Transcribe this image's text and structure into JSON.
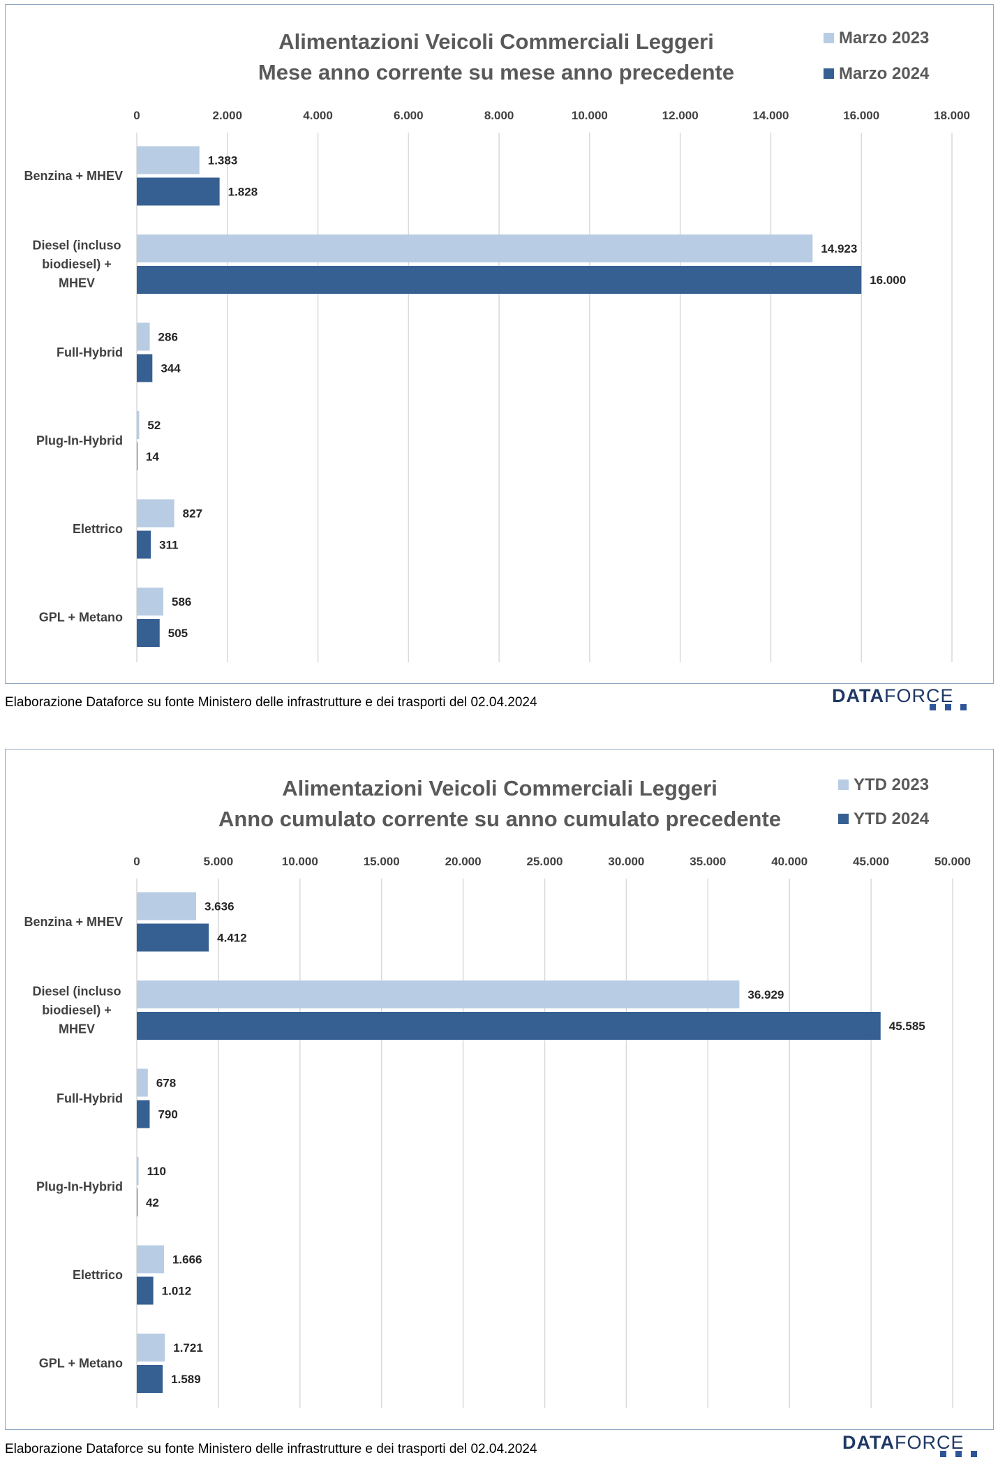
{
  "charts": [
    {
      "title_line1": "Alimentazioni Veicoli Commerciali Leggeri",
      "title_line2": "Mese anno corrente su mese anno precedente",
      "legend": [
        "Marzo 2023",
        "Marzo 2024"
      ],
      "footer": "Elaborazione Dataforce su fonte Ministero delle infrastrutture e dei trasporti del 02.04.2024"
    },
    {
      "title_line1": "Alimentazioni Veicoli Commerciali Leggeri",
      "title_line2": "Anno cumulato corrente su anno cumulato precedente",
      "legend": [
        "YTD 2023",
        "YTD 2024"
      ],
      "footer": "Elaborazione Dataforce su fonte Ministero delle infrastrutture e dei trasporti del 02.04.2024"
    }
  ],
  "logo": {
    "bold": "DATA",
    "thin": "FORCE"
  },
  "colors": {
    "prev": "#b8cce4",
    "curr": "#366092",
    "grid": "#d9d9d9",
    "border": "#8fa6c0"
  },
  "chart_data": [
    {
      "type": "bar",
      "orientation": "horizontal",
      "title": "Alimentazioni Veicoli Commerciali Leggeri - Mese anno corrente su mese anno precedente",
      "categories": [
        [
          "Benzina + MHEV"
        ],
        [
          "Diesel (incluso",
          "biodiesel) +",
          "MHEV"
        ],
        [
          "Full-Hybrid"
        ],
        [
          "Plug-In-Hybrid"
        ],
        [
          "Elettrico"
        ],
        [
          "GPL + Metano"
        ]
      ],
      "series": [
        {
          "name": "Marzo 2023",
          "values": [
            1383,
            14923,
            286,
            52,
            827,
            586
          ],
          "labels": [
            "1.383",
            "14.923",
            "286",
            "52",
            "827",
            "586"
          ]
        },
        {
          "name": "Marzo 2024",
          "values": [
            1828,
            16000,
            344,
            14,
            311,
            505
          ],
          "labels": [
            "1.828",
            "16.000",
            "344",
            "14",
            "311",
            "505"
          ]
        }
      ],
      "xlim": [
        0,
        18000
      ],
      "ticks": [
        0,
        2000,
        4000,
        6000,
        8000,
        10000,
        12000,
        14000,
        16000,
        18000
      ],
      "tick_labels": [
        "0",
        "2.000",
        "4.000",
        "6.000",
        "8.000",
        "10.000",
        "12.000",
        "14.000",
        "16.000",
        "18.000"
      ],
      "axis_position": "top",
      "grid": true,
      "legend_position": "top-right"
    },
    {
      "type": "bar",
      "orientation": "horizontal",
      "title": "Alimentazioni Veicoli Commerciali Leggeri - Anno cumulato corrente su anno cumulato precedente",
      "categories": [
        [
          "Benzina + MHEV"
        ],
        [
          "Diesel (incluso",
          "biodiesel) +",
          "MHEV"
        ],
        [
          "Full-Hybrid"
        ],
        [
          "Plug-In-Hybrid"
        ],
        [
          "Elettrico"
        ],
        [
          "GPL + Metano"
        ]
      ],
      "series": [
        {
          "name": "YTD 2023",
          "values": [
            3636,
            36929,
            678,
            110,
            1666,
            1721
          ],
          "labels": [
            "3.636",
            "36.929",
            "678",
            "110",
            "1.666",
            "1.721"
          ]
        },
        {
          "name": "YTD 2024",
          "values": [
            4412,
            45585,
            790,
            42,
            1012,
            1589
          ],
          "labels": [
            "4.412",
            "45.585",
            "790",
            "42",
            "1.012",
            "1.589"
          ]
        }
      ],
      "xlim": [
        0,
        50000
      ],
      "ticks": [
        0,
        5000,
        10000,
        15000,
        20000,
        25000,
        30000,
        35000,
        40000,
        45000,
        50000
      ],
      "tick_labels": [
        "0",
        "5.000",
        "10.000",
        "15.000",
        "20.000",
        "25.000",
        "30.000",
        "35.000",
        "40.000",
        "45.000",
        "50.000"
      ],
      "axis_position": "top",
      "grid": true,
      "legend_position": "top-right"
    }
  ]
}
